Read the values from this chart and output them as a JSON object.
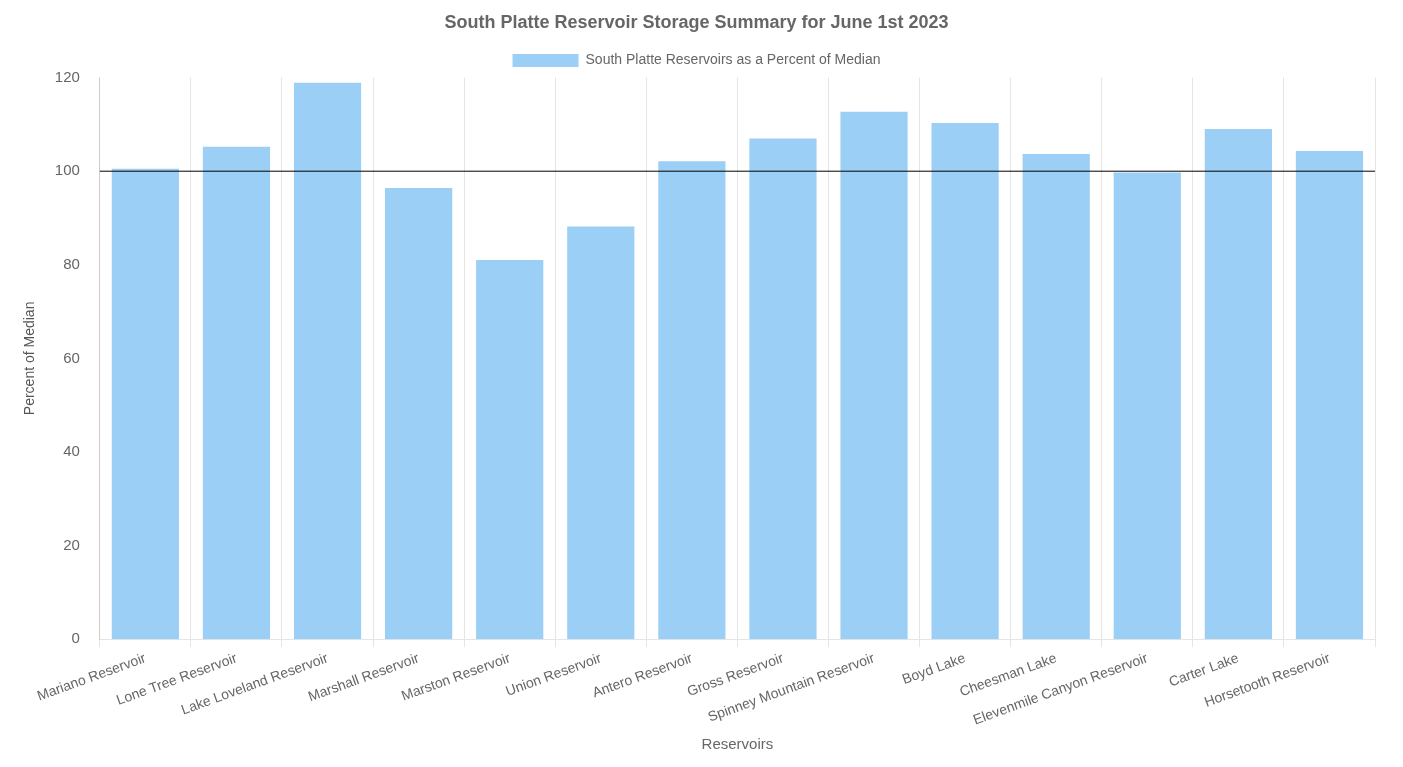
{
  "chart_data": {
    "type": "bar",
    "title": "South Platte Reservoir Storage Summary for June 1st 2023",
    "xlabel": "Reservoirs",
    "ylabel": "Percent of Median",
    "categories": [
      "Mariano Reservoir",
      "Lone Tree Reservoir",
      "Lake Loveland Reservoir",
      "Marshall Reservoir",
      "Marston Reservoir",
      "Union Reservoir",
      "Antero Reservoir",
      "Gross Reservoir",
      "Spinney Mountain Reservoir",
      "Boyd Lake",
      "Cheesman Lake",
      "Elevenmile Canyon Reservoir",
      "Carter Lake",
      "Horsetooth Reservoir"
    ],
    "series": [
      {
        "name": "South Platte Reservoirs as a Percent of Median",
        "color": "#9ccff5",
        "values": [
          100.5,
          105.2,
          118.9,
          96.4,
          81.0,
          88.2,
          102.1,
          107.0,
          112.7,
          110.3,
          103.7,
          99.7,
          109.0,
          104.3
        ]
      }
    ],
    "ylim": [
      0,
      120
    ],
    "yticks": [
      0,
      20,
      40,
      60,
      80,
      100,
      120
    ],
    "grid": "x",
    "legend": "top",
    "ref_lines": [
      {
        "axis": "y",
        "value": 100,
        "color": "#000000"
      }
    ]
  }
}
